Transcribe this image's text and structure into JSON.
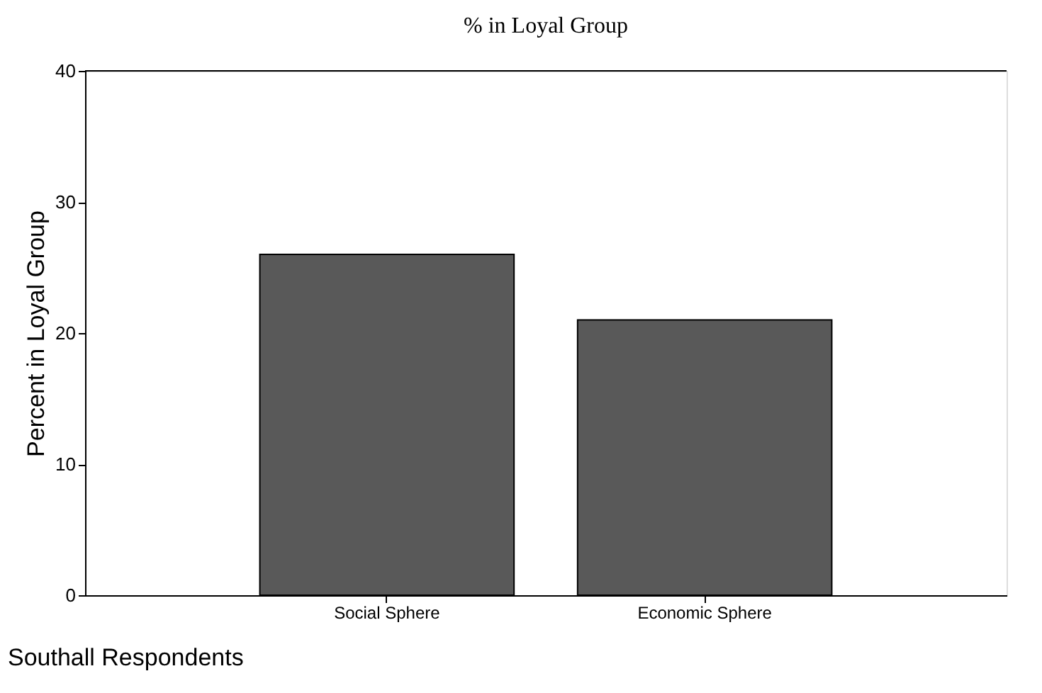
{
  "chart_data": {
    "type": "bar",
    "title": "% in Loyal Group",
    "xlabel": "Southall Respondents",
    "ylabel": "Percent in Loyal Group",
    "categories": [
      "Social Sphere",
      "Economic Sphere"
    ],
    "values": [
      26,
      21
    ],
    "color": "#595959",
    "ylim": [
      0,
      40
    ],
    "yticks": [
      0,
      10,
      20,
      30,
      40
    ],
    "grid": false
  }
}
